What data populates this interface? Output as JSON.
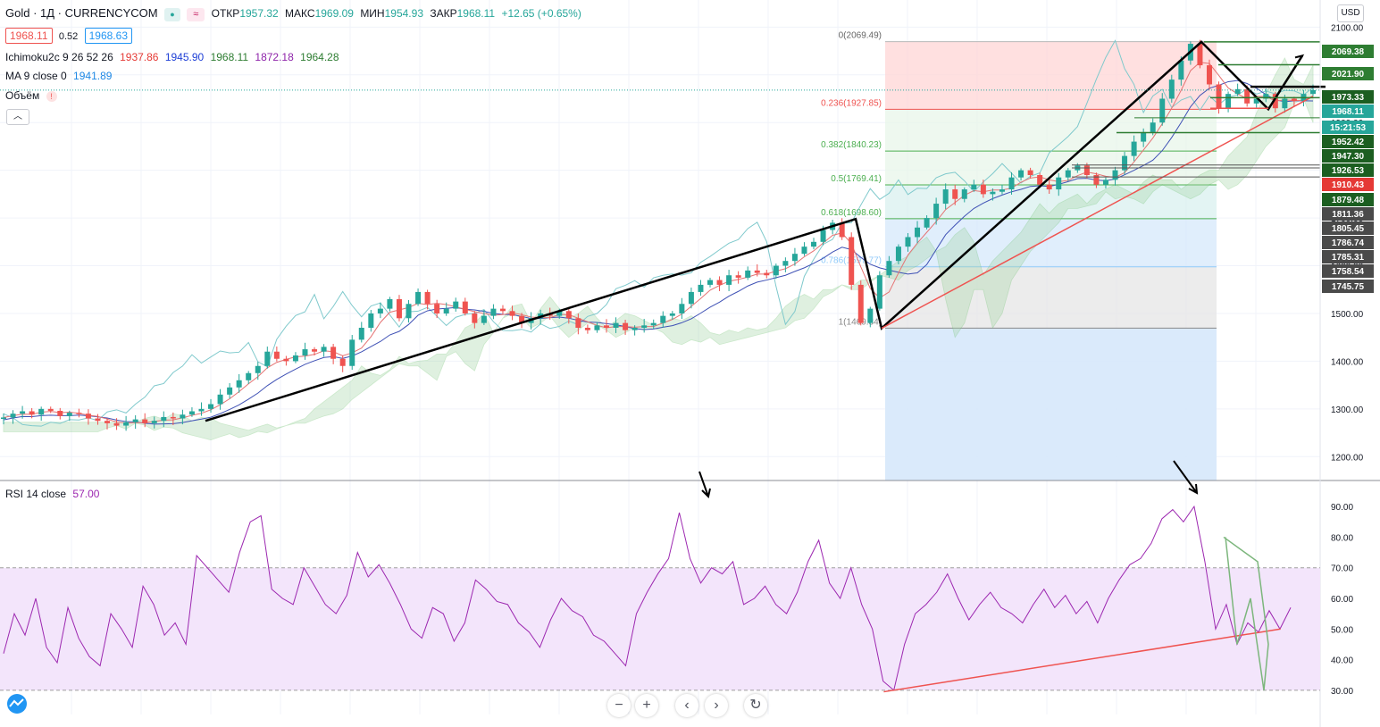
{
  "header": {
    "symbol": "Gold · 1Д · CURRENCYCOM",
    "open_label": "ОТКР",
    "open": "1957.32",
    "high_label": "МАКС",
    "high": "1969.09",
    "low_label": "МИН",
    "low": "1954.93",
    "close_label": "ЗАКР",
    "close": "1968.11",
    "change": "+12.65 (+0.65%)",
    "bid": "1968.11",
    "spread": "0.52",
    "ask": "1968.63"
  },
  "indicators": {
    "ichimoku": {
      "label": "Ichimoku2c 9 26 52 26",
      "v1": "1937.86",
      "v2": "1945.90",
      "v3": "1968.11",
      "v4": "1872.18",
      "v5": "1964.28"
    },
    "ma": {
      "label": "MA 9 close 0",
      "value": "1941.89"
    },
    "volume": {
      "label": "Объём"
    },
    "rsi": {
      "label": "RSI 14 close",
      "value": "57.00"
    }
  },
  "currency": "USD",
  "colors": {
    "up": "#26a69a",
    "down": "#ef5350",
    "rsi": "#9c27b0",
    "rsi_band": "#f3e5fb",
    "fib_red": "#ffd6d6",
    "fib_green": "#e8f5e9",
    "fib_blue": "#d6e8fb",
    "fib_grey": "#e6e6e6",
    "trend": "#000000",
    "support": "#ef5350",
    "cloud": "#a5d6a7"
  },
  "chart_data": [
    {
      "type": "candlestick",
      "title": "Gold · 1Д · CURRENCYCOM",
      "ylim": [
        1150,
        2110
      ],
      "y_ticks": [
        "1200.00",
        "1300.00",
        "1400.00",
        "1500.00",
        "1600.00",
        "1700.00",
        "1800.00",
        "1900.00",
        "2000.00",
        "2100.00"
      ],
      "price_tags": [
        {
          "value": "2069.38",
          "color": "#2e7d32"
        },
        {
          "value": "2021.90",
          "color": "#2e7d32"
        },
        {
          "value": "1973.33",
          "color": "#1b5e20"
        },
        {
          "value": "1968.11",
          "color": "#26a69a"
        },
        {
          "value": "15:21:53",
          "color": "#26a69a"
        },
        {
          "value": "1952.42",
          "color": "#1b5e20"
        },
        {
          "value": "1947.30",
          "color": "#1b5e20"
        },
        {
          "value": "1926.53",
          "color": "#1b5e20"
        },
        {
          "value": "1910.43",
          "color": "#e53935"
        },
        {
          "value": "1879.48",
          "color": "#1b5e20"
        },
        {
          "value": "1811.36",
          "color": "#4a4a4a"
        },
        {
          "value": "1805.45",
          "color": "#4a4a4a"
        },
        {
          "value": "1786.74",
          "color": "#4a4a4a"
        },
        {
          "value": "1785.31",
          "color": "#4a4a4a"
        },
        {
          "value": "1758.54",
          "color": "#4a4a4a"
        },
        {
          "value": "1745.75",
          "color": "#4a4a4a"
        }
      ],
      "fibonacci": [
        {
          "level": "0",
          "price": 2069.49,
          "label": "0(2069.49)"
        },
        {
          "level": "0.236",
          "price": 1927.85,
          "label": "0.236(1927.85)"
        },
        {
          "level": "0.382",
          "price": 1840.23,
          "label": "0.382(1840.23)"
        },
        {
          "level": "0.5",
          "price": 1769.41,
          "label": "0.5(1769.41)"
        },
        {
          "level": "0.618",
          "price": 1698.6,
          "label": "0.618(1698.60)"
        },
        {
          "level": "0.786",
          "price": 1597.77,
          "label": "0.786(1597.77)"
        },
        {
          "level": "1",
          "price": 1469.34,
          "label": "1(1469.34)"
        }
      ],
      "price_path": [
        1282,
        1290,
        1295,
        1288,
        1300,
        1296,
        1285,
        1292,
        1290,
        1280,
        1275,
        1270,
        1265,
        1272,
        1278,
        1270,
        1275,
        1283,
        1280,
        1288,
        1295,
        1300,
        1310,
        1330,
        1345,
        1360,
        1375,
        1390,
        1420,
        1405,
        1400,
        1412,
        1425,
        1420,
        1430,
        1405,
        1390,
        1445,
        1470,
        1500,
        1510,
        1530,
        1490,
        1520,
        1545,
        1520,
        1500,
        1510,
        1525,
        1500,
        1480,
        1495,
        1510,
        1505,
        1495,
        1480,
        1490,
        1500,
        1495,
        1505,
        1490,
        1470,
        1465,
        1475,
        1470,
        1480,
        1465,
        1470,
        1475,
        1480,
        1495,
        1500,
        1520,
        1545,
        1560,
        1570,
        1560,
        1580,
        1575,
        1590,
        1585,
        1580,
        1600,
        1610,
        1625,
        1640,
        1650,
        1675,
        1690,
        1660,
        1560,
        1480,
        1510,
        1580,
        1610,
        1640,
        1660,
        1680,
        1700,
        1730,
        1760,
        1740,
        1760,
        1770,
        1750,
        1755,
        1760,
        1785,
        1800,
        1790,
        1770,
        1760,
        1785,
        1800,
        1810,
        1790,
        1770,
        1780,
        1800,
        1830,
        1860,
        1880,
        1900,
        1950,
        1990,
        2030,
        2065,
        2020,
        1980,
        1930,
        1960,
        1970,
        1940,
        1950,
        1960,
        1930,
        1950,
        1945,
        1960,
        1968
      ],
      "rsi": {
        "ylim": [
          25,
          95
        ],
        "y_ticks": [
          "30.00",
          "40.00",
          "50.00",
          "60.00",
          "70.00",
          "80.00",
          "90.00"
        ],
        "band": [
          30,
          70
        ],
        "values": [
          42,
          55,
          48,
          60,
          44,
          39,
          57,
          47,
          41,
          38,
          55,
          50,
          44,
          64,
          58,
          48,
          52,
          45,
          74,
          70,
          66,
          62,
          75,
          85,
          87,
          63,
          60,
          58,
          70,
          64,
          58,
          55,
          61,
          75,
          67,
          71,
          65,
          58,
          50,
          47,
          57,
          55,
          46,
          52,
          66,
          63,
          59,
          58,
          52,
          49,
          44,
          53,
          60,
          56,
          54,
          48,
          46,
          42,
          38,
          55,
          62,
          68,
          73,
          88,
          73,
          65,
          70,
          68,
          72,
          58,
          60,
          64,
          58,
          55,
          62,
          72,
          79,
          65,
          60,
          70,
          58,
          50,
          33,
          30,
          45,
          55,
          58,
          62,
          68,
          60,
          53,
          58,
          62,
          57,
          55,
          52,
          58,
          63,
          57,
          61,
          55,
          59,
          52,
          60,
          66,
          71,
          73,
          78,
          86,
          89,
          85,
          90,
          72,
          50,
          58,
          45,
          52,
          49,
          56,
          50,
          57
        ],
        "support_line": [
          [
            0.48,
            29.5
          ],
          [
            0.97,
            50
          ]
        ]
      }
    }
  ]
}
